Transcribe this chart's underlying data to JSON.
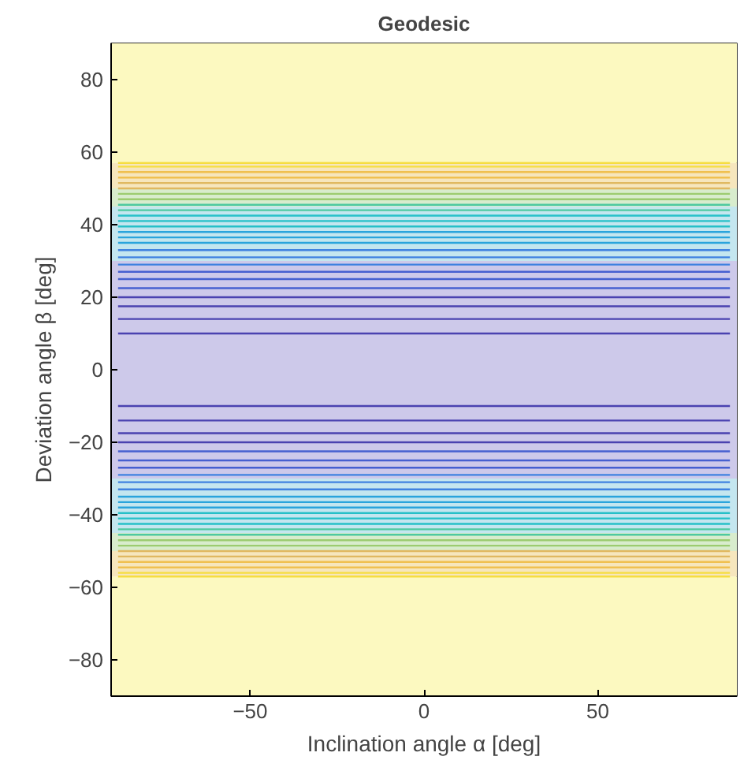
{
  "chart_data": {
    "type": "line",
    "title": "Geodesic",
    "xlabel": "Inclination angle α [deg]",
    "ylabel": "Deviation angle β [deg]",
    "xlim": [
      -90,
      90
    ],
    "ylim": [
      -90,
      90
    ],
    "xticks": [
      -50,
      0,
      50
    ],
    "yticks": [
      -80,
      -60,
      -40,
      -20,
      0,
      20,
      40,
      60,
      80
    ],
    "x": [
      -88,
      88
    ],
    "bands": [
      {
        "axis": "y",
        "from": 57,
        "to": 90,
        "color": "#fcf9c0"
      },
      {
        "axis": "y",
        "from": -90,
        "to": -57,
        "color": "#fcf9c0"
      },
      {
        "axis": "y",
        "from": -30,
        "to": 30,
        "color": "#cdc9ea"
      },
      {
        "axis": "y",
        "from": 30,
        "to": 45,
        "color": "#c4e6ef"
      },
      {
        "axis": "y",
        "from": -45,
        "to": -30,
        "color": "#c4e6ef"
      },
      {
        "axis": "y",
        "from": 45,
        "to": 50,
        "color": "#d8eccd"
      },
      {
        "axis": "y",
        "from": -50,
        "to": -45,
        "color": "#d8eccd"
      },
      {
        "axis": "y",
        "from": 50,
        "to": 57,
        "color": "#f6e6bd"
      },
      {
        "axis": "y",
        "from": -57,
        "to": -50,
        "color": "#f6e6bd"
      }
    ],
    "series": [
      {
        "color": "#4a42b0",
        "values": [
          10,
          10
        ]
      },
      {
        "color": "#4a42b0",
        "values": [
          14,
          14
        ]
      },
      {
        "color": "#4a42b0",
        "values": [
          17.5,
          17.5
        ]
      },
      {
        "color": "#4a42b0",
        "values": [
          20,
          20
        ]
      },
      {
        "color": "#4660d0",
        "values": [
          22.5,
          22.5
        ]
      },
      {
        "color": "#4660d0",
        "values": [
          25,
          25
        ]
      },
      {
        "color": "#4660d0",
        "values": [
          27,
          27
        ]
      },
      {
        "color": "#3f82e0",
        "values": [
          29,
          29
        ]
      },
      {
        "color": "#3f82e0",
        "values": [
          31,
          31
        ]
      },
      {
        "color": "#3f82e0",
        "values": [
          33,
          33
        ]
      },
      {
        "color": "#2aa4dc",
        "values": [
          35,
          35
        ]
      },
      {
        "color": "#2aa4dc",
        "values": [
          36.5,
          36.5
        ]
      },
      {
        "color": "#2aa4dc",
        "values": [
          38,
          38
        ]
      },
      {
        "color": "#26c0c8",
        "values": [
          39.5,
          39.5
        ]
      },
      {
        "color": "#26c0c8",
        "values": [
          41,
          41
        ]
      },
      {
        "color": "#26c0c8",
        "values": [
          42.5,
          42.5
        ]
      },
      {
        "color": "#4ec9a0",
        "values": [
          44,
          44
        ]
      },
      {
        "color": "#4ec9a0",
        "values": [
          45.5,
          45.5
        ]
      },
      {
        "color": "#9ccc70",
        "values": [
          47,
          47
        ]
      },
      {
        "color": "#9ccc70",
        "values": [
          48.5,
          48.5
        ]
      },
      {
        "color": "#e0b860",
        "values": [
          50,
          50
        ]
      },
      {
        "color": "#e0b860",
        "values": [
          51.5,
          51.5
        ]
      },
      {
        "color": "#f0c050",
        "values": [
          53,
          53
        ]
      },
      {
        "color": "#f0c050",
        "values": [
          54.5,
          54.5
        ]
      },
      {
        "color": "#f6dd40",
        "values": [
          56,
          56
        ]
      },
      {
        "color": "#f6dd40",
        "values": [
          57,
          57
        ]
      },
      {
        "color": "#4a42b0",
        "values": [
          -10,
          -10
        ]
      },
      {
        "color": "#4a42b0",
        "values": [
          -14,
          -14
        ]
      },
      {
        "color": "#4a42b0",
        "values": [
          -17.5,
          -17.5
        ]
      },
      {
        "color": "#4a42b0",
        "values": [
          -20,
          -20
        ]
      },
      {
        "color": "#4660d0",
        "values": [
          -22.5,
          -22.5
        ]
      },
      {
        "color": "#4660d0",
        "values": [
          -25,
          -25
        ]
      },
      {
        "color": "#4660d0",
        "values": [
          -27,
          -27
        ]
      },
      {
        "color": "#3f82e0",
        "values": [
          -29,
          -29
        ]
      },
      {
        "color": "#3f82e0",
        "values": [
          -31,
          -31
        ]
      },
      {
        "color": "#3f82e0",
        "values": [
          -33,
          -33
        ]
      },
      {
        "color": "#2aa4dc",
        "values": [
          -35,
          -35
        ]
      },
      {
        "color": "#2aa4dc",
        "values": [
          -36.5,
          -36.5
        ]
      },
      {
        "color": "#2aa4dc",
        "values": [
          -38,
          -38
        ]
      },
      {
        "color": "#26c0c8",
        "values": [
          -39.5,
          -39.5
        ]
      },
      {
        "color": "#26c0c8",
        "values": [
          -41,
          -41
        ]
      },
      {
        "color": "#26c0c8",
        "values": [
          -42.5,
          -42.5
        ]
      },
      {
        "color": "#4ec9a0",
        "values": [
          -44,
          -44
        ]
      },
      {
        "color": "#4ec9a0",
        "values": [
          -45.5,
          -45.5
        ]
      },
      {
        "color": "#9ccc70",
        "values": [
          -47,
          -47
        ]
      },
      {
        "color": "#9ccc70",
        "values": [
          -48.5,
          -48.5
        ]
      },
      {
        "color": "#e0b860",
        "values": [
          -50,
          -50
        ]
      },
      {
        "color": "#e0b860",
        "values": [
          -51.5,
          -51.5
        ]
      },
      {
        "color": "#f0c050",
        "values": [
          -53,
          -53
        ]
      },
      {
        "color": "#f0c050",
        "values": [
          -54.5,
          -54.5
        ]
      },
      {
        "color": "#f6dd40",
        "values": [
          -56,
          -56
        ]
      },
      {
        "color": "#f6dd40",
        "values": [
          -57,
          -57
        ]
      }
    ]
  }
}
